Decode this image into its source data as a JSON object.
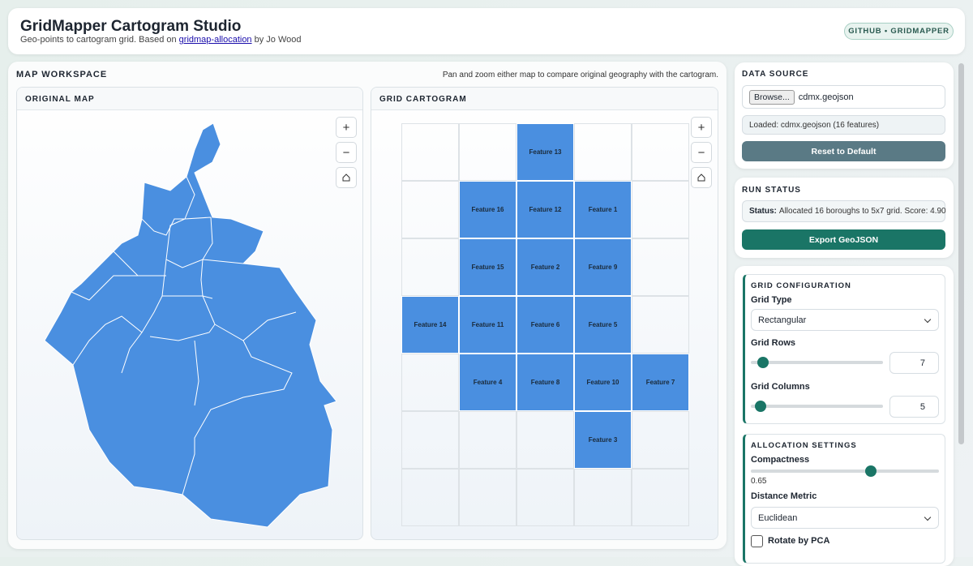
{
  "header": {
    "title": "GridMapper Cartogram Studio",
    "subtitle_prefix": "Geo-points to cartogram grid. Based on",
    "subtitle_link": "gridmap-allocation",
    "subtitle_suffix": "by Jo Wood",
    "button": "GITHUB • GRIDMAPPER"
  },
  "workspace": {
    "title": "MAP WORKSPACE",
    "hint": "Pan and zoom either map to compare original geography with the cartogram.",
    "zoom_in": "+",
    "zoom_out": "−",
    "original_map": {
      "title": "ORIGINAL MAP"
    },
    "grid_cartogram": {
      "title": "GRID CARTOGRAM",
      "rows": [
        [
          null,
          null,
          "Feature 13",
          null,
          null
        ],
        [
          null,
          "Feature 16",
          "Feature 12",
          "Feature 1",
          null
        ],
        [
          null,
          "Feature 15",
          "Feature 2",
          "Feature 9",
          null
        ],
        [
          "Feature 14",
          "Feature 11",
          "Feature 6",
          "Feature 5",
          null
        ],
        [
          null,
          "Feature 4",
          "Feature 8",
          "Feature 10",
          "Feature 7"
        ],
        [
          null,
          null,
          null,
          "Feature 3",
          null
        ],
        [
          null,
          null,
          null,
          null,
          null
        ]
      ]
    }
  },
  "sidebar": {
    "data_source": {
      "title": "DATA SOURCE",
      "browse": "Browse...",
      "file": "cdmx.geojson",
      "loaded": "Loaded: cdmx.geojson (16 features)",
      "reset": "Reset to Default"
    },
    "run_status": {
      "title": "RUN STATUS",
      "label": "Status:",
      "text": "Allocated 16 boroughs to 5x7 grid. Score: 4.90",
      "export": "Export GeoJSON"
    },
    "grid_configuration": {
      "title": "GRID CONFIGURATION",
      "grid_type_label": "Grid Type",
      "grid_type": "Rectangular",
      "rows_label": "Grid Rows",
      "rows": "7",
      "columns_label": "Grid Columns",
      "columns": "5"
    },
    "allocation_settings": {
      "title": "ALLOCATION SETTINGS",
      "compactness_label": "Compactness",
      "compactness": "0.65",
      "distance_label": "Distance Metric",
      "distance": "Euclidean",
      "rotate": "Rotate by PCA"
    }
  }
}
